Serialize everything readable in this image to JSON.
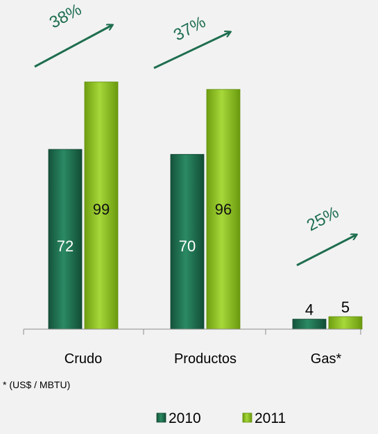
{
  "chart_data": {
    "type": "bar",
    "categories": [
      "Crudo",
      "Productos",
      "Gas*"
    ],
    "series": [
      {
        "name": "2010",
        "values": [
          72,
          70,
          4
        ],
        "color": "#1e6e4f"
      },
      {
        "name": "2011",
        "values": [
          99,
          96,
          5
        ],
        "color": "#8dc21f"
      }
    ],
    "growth_labels": [
      "38%",
      "37%",
      "25%"
    ],
    "footnote": "* (US$ / MBTU)",
    "ylim": [
      0,
      100
    ],
    "grid": false,
    "legend_position": "bottom",
    "arrow_color": "#1e6e4f"
  }
}
